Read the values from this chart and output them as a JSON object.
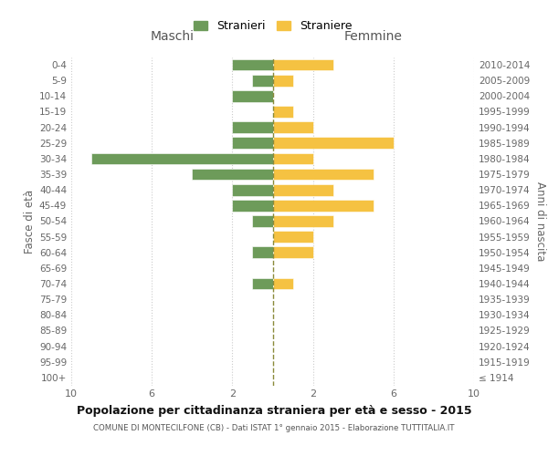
{
  "age_groups": [
    "0-4",
    "5-9",
    "10-14",
    "15-19",
    "20-24",
    "25-29",
    "30-34",
    "35-39",
    "40-44",
    "45-49",
    "50-54",
    "55-59",
    "60-64",
    "65-69",
    "70-74",
    "75-79",
    "80-84",
    "85-89",
    "90-94",
    "95-99",
    "100+"
  ],
  "birth_years": [
    "2010-2014",
    "2005-2009",
    "2000-2004",
    "1995-1999",
    "1990-1994",
    "1985-1989",
    "1980-1984",
    "1975-1979",
    "1970-1974",
    "1965-1969",
    "1960-1964",
    "1955-1959",
    "1950-1954",
    "1945-1949",
    "1940-1944",
    "1935-1939",
    "1930-1934",
    "1925-1929",
    "1920-1924",
    "1915-1919",
    "≤ 1914"
  ],
  "maschi": [
    2,
    1,
    2,
    0,
    2,
    2,
    9,
    4,
    2,
    2,
    1,
    0,
    1,
    0,
    1,
    0,
    0,
    0,
    0,
    0,
    0
  ],
  "femmine": [
    3,
    1,
    0,
    1,
    2,
    6,
    2,
    5,
    3,
    5,
    3,
    2,
    2,
    0,
    1,
    0,
    0,
    0,
    0,
    0,
    0
  ],
  "color_maschi": "#6d9b5a",
  "color_femmine": "#f5c242",
  "background_color": "#ffffff",
  "grid_color": "#cccccc",
  "dashed_line_color": "#8a8a3a",
  "title": "Popolazione per cittadinanza straniera per età e sesso - 2015",
  "subtitle": "COMUNE DI MONTECILFONE (CB) - Dati ISTAT 1° gennaio 2015 - Elaborazione TUTTITALIA.IT",
  "xlabel_left": "Maschi",
  "xlabel_right": "Femmine",
  "ylabel_left": "Fasce di età",
  "ylabel_right": "Anni di nascita",
  "legend_maschi": "Stranieri",
  "legend_femmine": "Straniere",
  "xlim": 10
}
